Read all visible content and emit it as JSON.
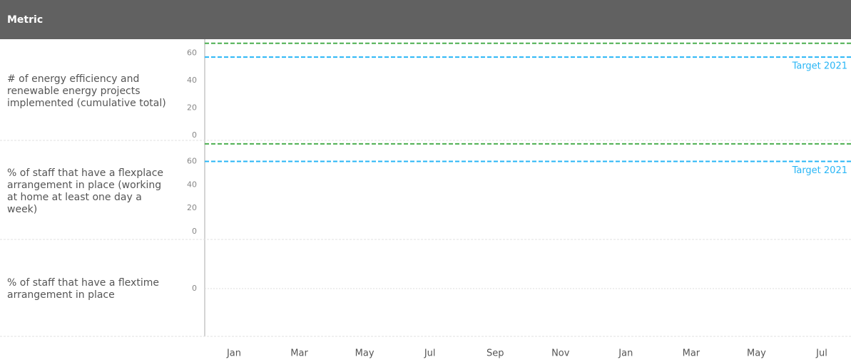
{
  "header": {
    "title": "Metric"
  },
  "x_axis": {
    "categories": [
      "Jan",
      "Mar",
      "May",
      "Jul",
      "Sep",
      "Nov",
      "Jan",
      "Mar",
      "May",
      "Jul"
    ]
  },
  "chart_data": [
    {
      "type": "line",
      "title": "# of energy efficiency and renewable energy projects implemented (cumulative total)",
      "ylim": [
        0,
        70
      ],
      "yticks": [
        0,
        20,
        40,
        60
      ],
      "targets": [
        {
          "name": "Target 2021",
          "color": "#29b6f6",
          "value": 57
        },
        {
          "color": "#4caf50",
          "value": 67
        }
      ]
    },
    {
      "type": "line",
      "title": "% of staff that have a flexplace arrangement in place (working at home at least one day a week)",
      "ylim": [
        0,
        78
      ],
      "yticks": [
        0,
        20,
        40,
        60
      ],
      "targets": [
        {
          "name": "Target 2021",
          "color": "#29b6f6",
          "value": 60
        },
        {
          "color": "#4caf50",
          "value": 75
        }
      ]
    },
    {
      "type": "line",
      "title": "% of staff that have a flextime arrangement in place",
      "ylim": [
        -1,
        1
      ],
      "yticks": [
        0
      ],
      "grid": true,
      "targets": []
    }
  ]
}
